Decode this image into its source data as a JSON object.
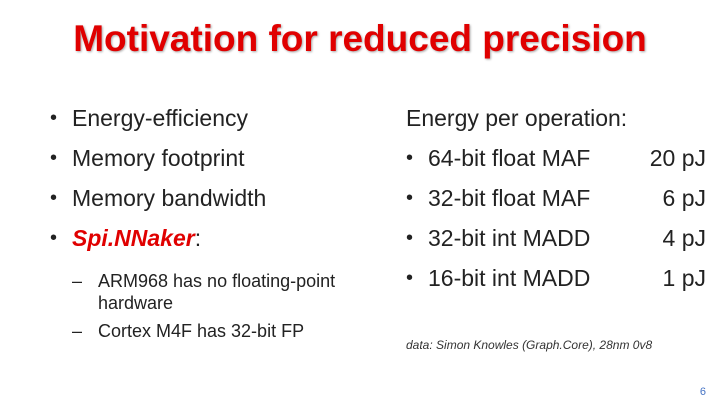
{
  "colors": {
    "accent": "#e00000",
    "page_number": "#4472c4"
  },
  "title": "Motivation for reduced precision",
  "left": {
    "bullets": [
      {
        "text": "Energy-efficiency"
      },
      {
        "text": "Memory footprint"
      },
      {
        "text": "Memory bandwidth"
      },
      {
        "text": "Spi.NNaker",
        "suffix": ":"
      }
    ],
    "sub_bullets": [
      "ARM968 has no floating-point hardware",
      "Cortex M4F has 32-bit FP"
    ]
  },
  "right": {
    "heading": "Energy per operation:",
    "items": [
      {
        "label": "64-bit float MAF",
        "value": "20 pJ"
      },
      {
        "label": "32-bit float MAF",
        "value": "6 pJ"
      },
      {
        "label": "32-bit int MADD",
        "value": "4 pJ"
      },
      {
        "label": "16-bit int MADD",
        "value": "1 pJ"
      }
    ]
  },
  "note": "data: Simon Knowles (Graph.Core), 28nm 0v8",
  "page_number": "6"
}
